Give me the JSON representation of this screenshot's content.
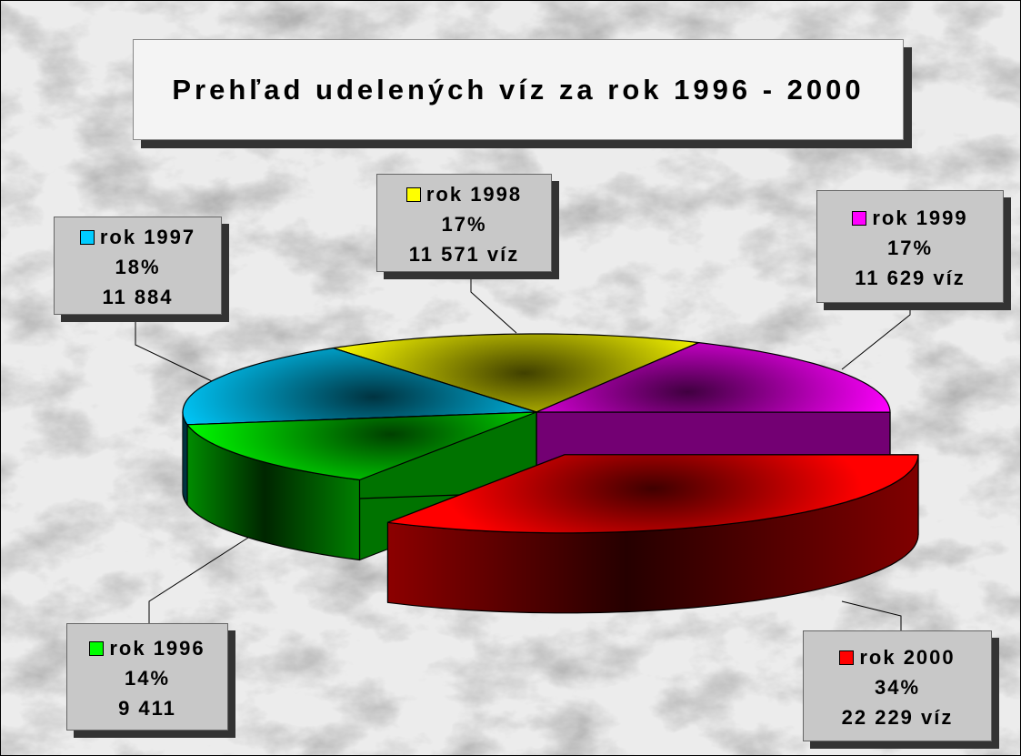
{
  "chart_data": {
    "type": "pie3d",
    "title": "Prehľad udelených víz za rok 1996 - 2000",
    "categories": [
      "rok 1996",
      "rok 1997",
      "rok 1998",
      "rok 1999",
      "rok 2000"
    ],
    "values": [
      14,
      18,
      17,
      17,
      34
    ],
    "value_labels": [
      "14%",
      "18%",
      "17%",
      "17%",
      "34%"
    ],
    "counts": [
      9411,
      11884,
      11571,
      11629,
      22229
    ],
    "count_labels": [
      "9 411",
      "11 884",
      "11 571 víz",
      "11 629 víz",
      "22 229 víz"
    ],
    "colors": [
      "#00ff00",
      "#00ccff",
      "#ffff00",
      "#ff00ff",
      "#ff0000"
    ],
    "exploded": [
      false,
      false,
      false,
      false,
      true
    ]
  }
}
